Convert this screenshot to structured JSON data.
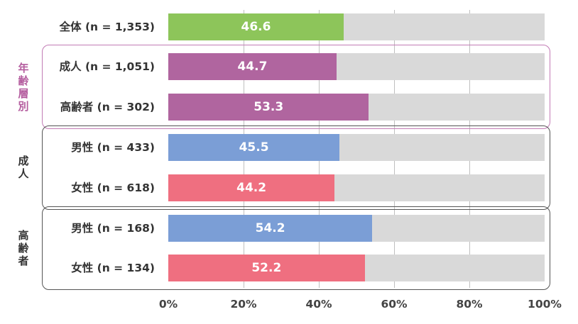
{
  "chart_data": {
    "type": "bar",
    "orientation": "horizontal",
    "stacked_remainder_to": 100,
    "xlim": [
      0,
      100
    ],
    "x_ticks": [
      "0%",
      "20%",
      "40%",
      "60%",
      "80%",
      "100%"
    ],
    "groups": [
      {
        "label": "",
        "frame": false
      },
      {
        "label": "年齢層別",
        "frame": true,
        "color": "#b45c9e"
      },
      {
        "label": "成人",
        "frame": true,
        "color": "#333333"
      },
      {
        "label": "高齢者",
        "frame": true,
        "color": "#333333"
      }
    ],
    "rows": [
      {
        "category": "全体 (n = 1,353)",
        "value": 46.6,
        "label": "46.6",
        "group": 0,
        "color": "#8dc55a"
      },
      {
        "category": "成人 (n = 1,051)",
        "value": 44.7,
        "label": "44.7",
        "group": 1,
        "color": "#b0659f"
      },
      {
        "category": "高齢者 (n = 302)",
        "value": 53.3,
        "label": "53.3",
        "group": 1,
        "color": "#b0659f"
      },
      {
        "category": "男性 (n = 433)",
        "value": 45.5,
        "label": "45.5",
        "group": 2,
        "color": "#7b9ed6"
      },
      {
        "category": "女性 (n = 618)",
        "value": 44.2,
        "label": "44.2",
        "group": 2,
        "color": "#ef6f80"
      },
      {
        "category": "男性 (n = 168)",
        "value": 54.2,
        "label": "54.2",
        "group": 3,
        "color": "#7b9ed6"
      },
      {
        "category": "女性 (n = 134)",
        "value": 52.2,
        "label": "52.2",
        "group": 3,
        "color": "#ef6f80"
      }
    ],
    "colors": {
      "remainder": "#d9d9d9",
      "gridline": "#bfbfbf"
    }
  }
}
